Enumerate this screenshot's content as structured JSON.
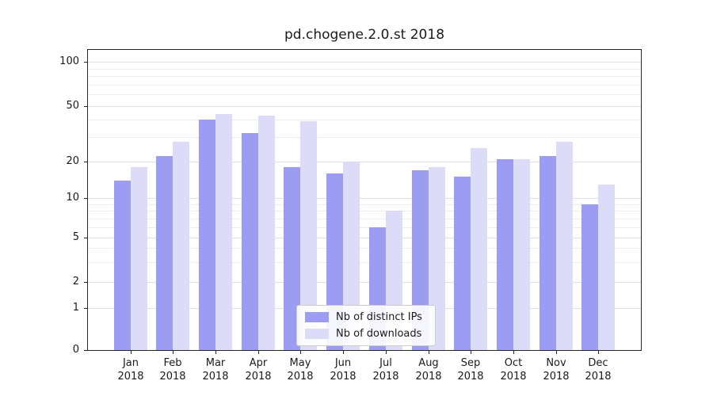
{
  "chart_data": {
    "type": "bar",
    "title": "pd.chogene.2.0.st 2018",
    "categories": [
      "Jan",
      "Feb",
      "Mar",
      "Apr",
      "May",
      "Jun",
      "Jul",
      "Aug",
      "Sep",
      "Oct",
      "Nov",
      "Dec"
    ],
    "year": "2018",
    "yticks": [
      0,
      1,
      2,
      5,
      10,
      20,
      50,
      100
    ],
    "yscale": "symlog",
    "xlabel": "",
    "ylabel": "",
    "grid": "horizontal minor+major, light gray",
    "legend_position": "inside plot, lower center",
    "series": [
      {
        "name": "Nb of distinct IPs",
        "color": "#9c9cf2",
        "values": [
          14,
          22,
          40,
          32,
          18,
          16,
          6,
          17,
          15,
          21,
          22,
          9
        ]
      },
      {
        "name": "Nb of downloads",
        "color": "#dcdcf9",
        "values": [
          18,
          28,
          44,
          43,
          39,
          20,
          8,
          18,
          25,
          21,
          28,
          13
        ]
      }
    ]
  }
}
